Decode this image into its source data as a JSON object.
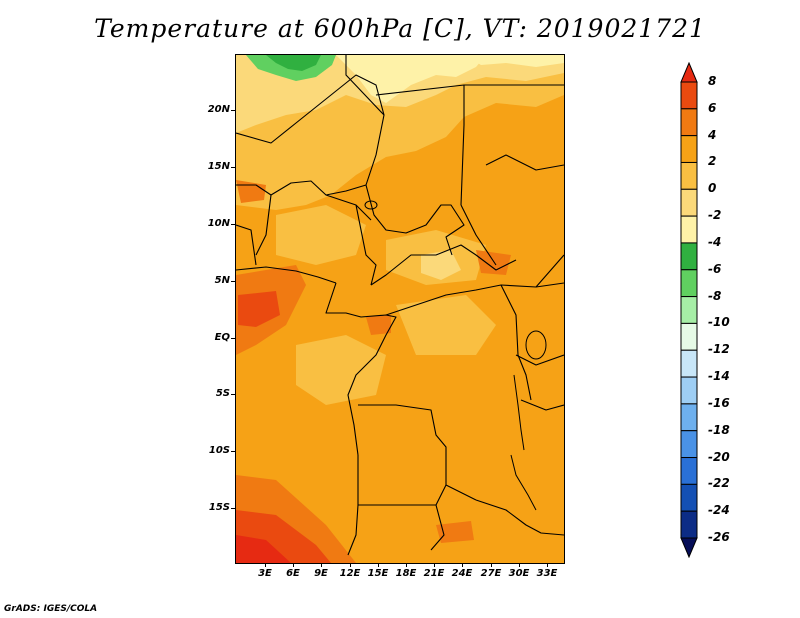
{
  "title": "Temperature at 600hPa [C], VT: 2019021721",
  "footer": "GrADS: IGES/COLA",
  "lat_labels": [
    "20N",
    "15N",
    "10N",
    "5N",
    "EQ",
    "5S",
    "10S",
    "15S"
  ],
  "lon_labels": [
    "3E",
    "6E",
    "9E",
    "12E",
    "15E",
    "18E",
    "21E",
    "24E",
    "27E",
    "30E",
    "33E"
  ],
  "colorbar": {
    "labels": [
      "8",
      "6",
      "4",
      "2",
      "0",
      "-2",
      "-4",
      "-6",
      "-8",
      "-10",
      "-12",
      "-14",
      "-16",
      "-18",
      "-20",
      "-22",
      "-24",
      "-26"
    ],
    "colors": [
      "#e62a12",
      "#ea4a10",
      "#f07a12",
      "#f6a216",
      "#f9bf42",
      "#fbd97a",
      "#fef2a8",
      "#30b040",
      "#60d060",
      "#a6eea6",
      "#e6fae6",
      "#c8e6f8",
      "#9ecef4",
      "#6eb0ee",
      "#4a92e6",
      "#2a70d6",
      "#1450b4",
      "#0c2c86",
      "#060e58"
    ]
  },
  "field_colors": {
    "warm4": "#f07a12",
    "warm2": "#f6a216",
    "warm0": "#f9bf42",
    "cool2": "#fbd97a",
    "cool4": "#fef2a8",
    "green6": "#30b040",
    "green8": "#60d060",
    "hot6": "#ea4a10",
    "hot8": "#e62a12"
  }
}
